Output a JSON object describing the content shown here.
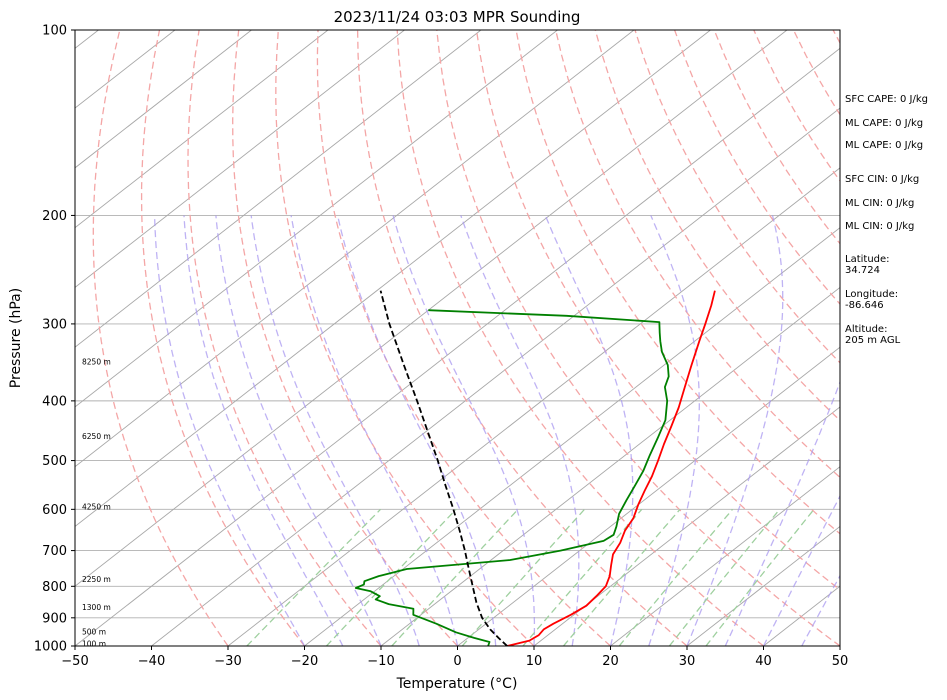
{
  "chart_data": {
    "type": "line",
    "title": "2023/11/24 03:03 MPR Sounding",
    "xlabel": "Temperature (°C)",
    "ylabel": "Pressure (hPa)",
    "xlim": [
      -50,
      50
    ],
    "ylim": [
      1000,
      100
    ],
    "y_scale": "log",
    "grid": true,
    "x_ticks": [
      "−50",
      "−40",
      "−30",
      "−20",
      "−10",
      "0",
      "10",
      "20",
      "30",
      "40",
      "50"
    ],
    "y_ticks": [
      {
        "p": 100,
        "label": "100"
      },
      {
        "p": 200,
        "label": "200"
      },
      {
        "p": 300,
        "label": "300"
      },
      {
        "p": 400,
        "label": "400"
      },
      {
        "p": 500,
        "label": "500"
      },
      {
        "p": 600,
        "label": "600"
      },
      {
        "p": 700,
        "label": "700"
      },
      {
        "p": 800,
        "label": "800"
      },
      {
        "p": 900,
        "label": "900"
      },
      {
        "p": 1000,
        "label": "1000"
      }
    ],
    "series": [
      {
        "color": "#ff0000",
        "points": [
          {
            "p": 1000,
            "t": 6.5
          },
          {
            "p": 980,
            "t": 8.5
          },
          {
            "p": 960,
            "t": 8.8
          },
          {
            "p": 940,
            "t": 8.5
          },
          {
            "p": 920,
            "t": 8.8
          },
          {
            "p": 890,
            "t": 9.6
          },
          {
            "p": 860,
            "t": 10.1
          },
          {
            "p": 830,
            "t": 9.8
          },
          {
            "p": 800,
            "t": 9.4
          },
          {
            "p": 770,
            "t": 8.2
          },
          {
            "p": 740,
            "t": 6.6
          },
          {
            "p": 710,
            "t": 5.0
          },
          {
            "p": 680,
            "t": 4.0
          },
          {
            "p": 650,
            "t": 2.6
          },
          {
            "p": 620,
            "t": 1.6
          },
          {
            "p": 590,
            "t": 0.0
          },
          {
            "p": 560,
            "t": -1.5
          },
          {
            "p": 530,
            "t": -3.0
          },
          {
            "p": 500,
            "t": -4.8
          },
          {
            "p": 470,
            "t": -6.8
          },
          {
            "p": 440,
            "t": -8.8
          },
          {
            "p": 410,
            "t": -11.0
          },
          {
            "p": 380,
            "t": -13.6
          },
          {
            "p": 350,
            "t": -16.4
          },
          {
            "p": 320,
            "t": -19.4
          },
          {
            "p": 300,
            "t": -21.5
          },
          {
            "p": 280,
            "t": -23.8
          },
          {
            "p": 265,
            "t": -25.8
          }
        ]
      },
      {
        "color": "#008000",
        "points": [
          {
            "p": 1000,
            "t": 4.0
          },
          {
            "p": 985,
            "t": 3.5
          },
          {
            "p": 970,
            "t": 0.8
          },
          {
            "p": 950,
            "t": -2.5
          },
          {
            "p": 920,
            "t": -6.5
          },
          {
            "p": 890,
            "t": -11.0
          },
          {
            "p": 870,
            "t": -12.0
          },
          {
            "p": 855,
            "t": -16.0
          },
          {
            "p": 840,
            "t": -18.5
          },
          {
            "p": 830,
            "t": -18.5
          },
          {
            "p": 815,
            "t": -20.5
          },
          {
            "p": 805,
            "t": -23.0
          },
          {
            "p": 795,
            "t": -22.5
          },
          {
            "p": 785,
            "t": -23.0
          },
          {
            "p": 770,
            "t": -22.0
          },
          {
            "p": 750,
            "t": -19.5
          },
          {
            "p": 725,
            "t": -7.5
          },
          {
            "p": 700,
            "t": -2.5
          },
          {
            "p": 675,
            "t": 1.5
          },
          {
            "p": 660,
            "t": 1.8
          },
          {
            "p": 640,
            "t": 0.8
          },
          {
            "p": 610,
            "t": -1.0
          },
          {
            "p": 580,
            "t": -2.3
          },
          {
            "p": 550,
            "t": -3.6
          },
          {
            "p": 520,
            "t": -5.0
          },
          {
            "p": 490,
            "t": -6.8
          },
          {
            "p": 460,
            "t": -8.6
          },
          {
            "p": 430,
            "t": -10.6
          },
          {
            "p": 400,
            "t": -13.6
          },
          {
            "p": 380,
            "t": -16.2
          },
          {
            "p": 365,
            "t": -17.5
          },
          {
            "p": 350,
            "t": -19.5
          },
          {
            "p": 333,
            "t": -22.5
          },
          {
            "p": 320,
            "t": -24.5
          },
          {
            "p": 310,
            "t": -26.0
          },
          {
            "p": 300,
            "t": -27.5
          },
          {
            "p": 298,
            "t": -27.8
          },
          {
            "p": 291,
            "t": -41.0
          },
          {
            "p": 285,
            "t": -60.0
          }
        ]
      },
      {
        "color": "#000000",
        "dashed": true,
        "points": [
          {
            "p": 1000,
            "t": 6.5
          },
          {
            "p": 970,
            "t": 4.0
          },
          {
            "p": 940,
            "t": 1.5
          },
          {
            "p": 900,
            "t": -1.5
          },
          {
            "p": 850,
            "t": -4.8
          },
          {
            "p": 800,
            "t": -8.0
          },
          {
            "p": 750,
            "t": -11.4
          },
          {
            "p": 700,
            "t": -15.0
          },
          {
            "p": 650,
            "t": -19.0
          },
          {
            "p": 600,
            "t": -23.4
          },
          {
            "p": 550,
            "t": -28.3
          },
          {
            "p": 500,
            "t": -33.6
          },
          {
            "p": 450,
            "t": -39.6
          },
          {
            "p": 400,
            "t": -46.3
          },
          {
            "p": 350,
            "t": -54.0
          },
          {
            "p": 300,
            "t": -62.8
          },
          {
            "p": 265,
            "t": -69.5
          }
        ]
      }
    ],
    "height_labels": [
      {
        "p": 345,
        "label": "8250 m"
      },
      {
        "p": 456,
        "label": "6250 m"
      },
      {
        "p": 594,
        "label": "4250 m"
      },
      {
        "p": 778,
        "label": "2250 m"
      },
      {
        "p": 864,
        "label": "1300 m"
      },
      {
        "p": 948,
        "label": "500 m"
      },
      {
        "p": 990,
        "label": "100 m"
      }
    ],
    "annotations": [
      "SFC CAPE: 0 J/kg",
      "ML CAPE: 0 J/kg",
      "ML CAPE: 0 J/kg",
      "SFC CIN: 0 J/kg",
      "ML CIN: 0 J/kg",
      "ML CIN: 0 J/kg",
      "Latitude:\n34.724",
      "Longitude:\n-86.646",
      "Altitude:\n205 m AGL"
    ]
  }
}
